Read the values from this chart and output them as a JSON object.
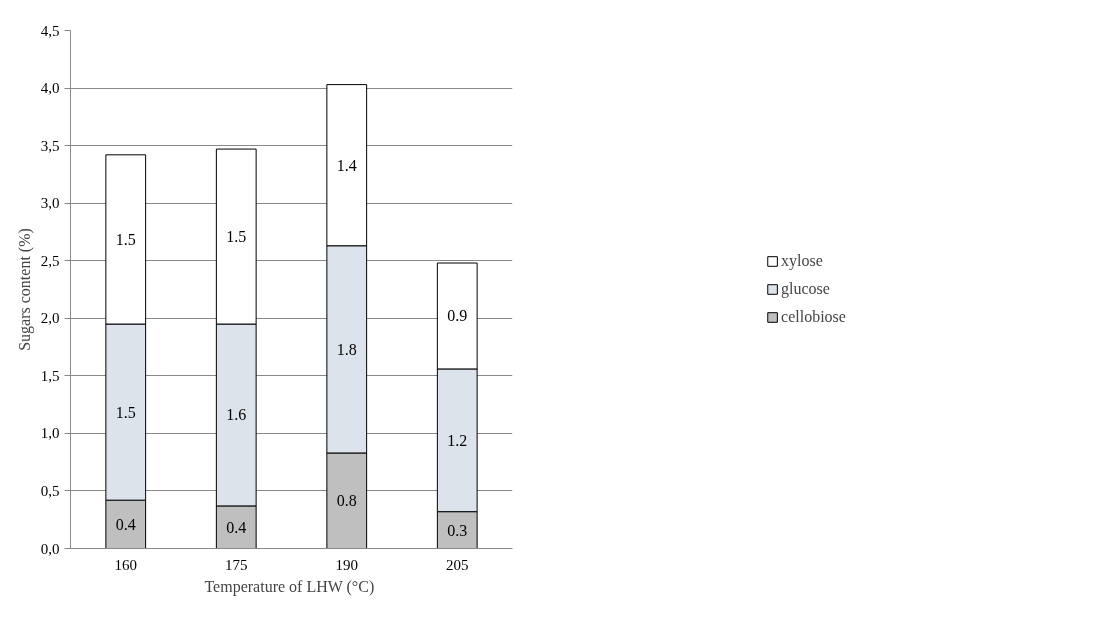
{
  "chart_data": {
    "type": "bar",
    "stacked": true,
    "xlabel": "Temperature of LHW  (°C)",
    "ylabel": "Sugars content (%)",
    "categories": [
      "160",
      "175",
      "190",
      "205"
    ],
    "series": [
      {
        "name": "cellobiose",
        "color": "#bfbfbf",
        "values": [
          0.42,
          0.37,
          0.83,
          0.32
        ],
        "value_labels": [
          "0.4",
          "0.4",
          "0.8",
          "0.3"
        ]
      },
      {
        "name": "glucose",
        "color": "#dde3ea",
        "values": [
          1.53,
          1.58,
          1.8,
          1.24
        ],
        "value_labels": [
          "1.5",
          "1.6",
          "1.8",
          "1.2"
        ]
      },
      {
        "name": "xylose",
        "color": "#ffffff",
        "values": [
          1.47,
          1.52,
          1.4,
          0.92
        ],
        "value_labels": [
          "1.5",
          "1.5",
          "1.4",
          "0.9"
        ]
      }
    ],
    "ylim": [
      0,
      4.5
    ],
    "yticks": [
      {
        "value": 0,
        "label": "0,0"
      },
      {
        "value": 0.5,
        "label": "0,5"
      },
      {
        "value": 1,
        "label": "1,0"
      },
      {
        "value": 1.5,
        "label": "1,5"
      },
      {
        "value": 2,
        "label": "2,0"
      },
      {
        "value": 2.5,
        "label": "2,5"
      },
      {
        "value": 3,
        "label": "3,0"
      },
      {
        "value": 3.5,
        "label": "3,5"
      },
      {
        "value": 4,
        "label": "4,0"
      },
      {
        "value": 4.5,
        "label": "4,5"
      }
    ],
    "grid": "y",
    "legend": "right"
  }
}
